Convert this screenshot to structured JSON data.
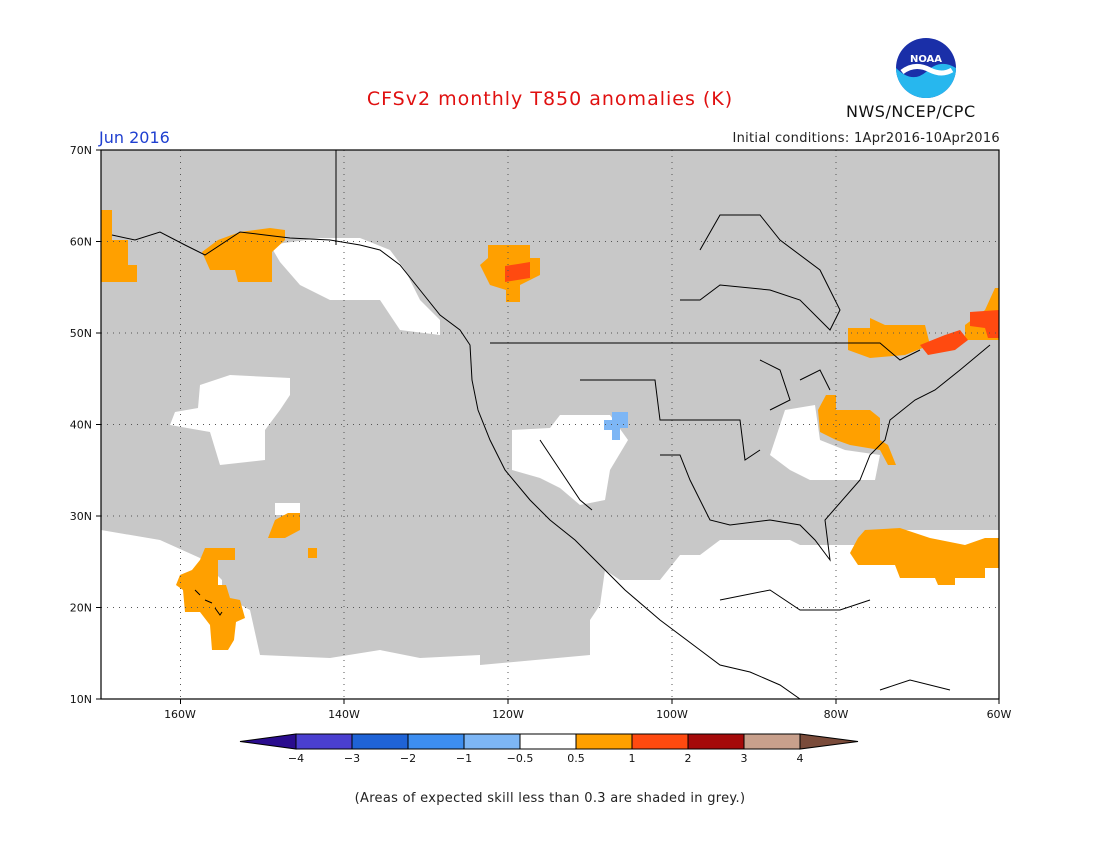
{
  "header": {
    "title": "CFSv2 monthly T850 anomalies (K)",
    "agency": "NWS/NCEP/CPC",
    "valid_month": "Jun 2016",
    "initial_conditions": "Initial conditions: 1Apr2016-10Apr2016",
    "logo_text": "NOAA"
  },
  "map": {
    "lat_labels": [
      "70N",
      "60N",
      "50N",
      "40N",
      "30N",
      "20N",
      "10N"
    ],
    "lon_labels": [
      "160W",
      "140W",
      "120W",
      "100W",
      "80W",
      "60W"
    ],
    "grey_meaning": "skill < 0.3"
  },
  "colorbar": {
    "tick_labels": [
      "-4",
      "-3",
      "-2",
      "-1",
      "-0.5",
      "0.5",
      "1",
      "2",
      "3",
      "4"
    ],
    "colors": [
      "#2a0c8e",
      "#4a3fd0",
      "#1f63d6",
      "#3d8ef0",
      "#7db6f5",
      "#ffffff",
      "#ffa000",
      "#ff4a10",
      "#a50a0a",
      "#c8a08c",
      "#7a4b3a"
    ]
  },
  "footnote": "(Areas of expected skill less than 0.3 are shaded in grey.)"
}
